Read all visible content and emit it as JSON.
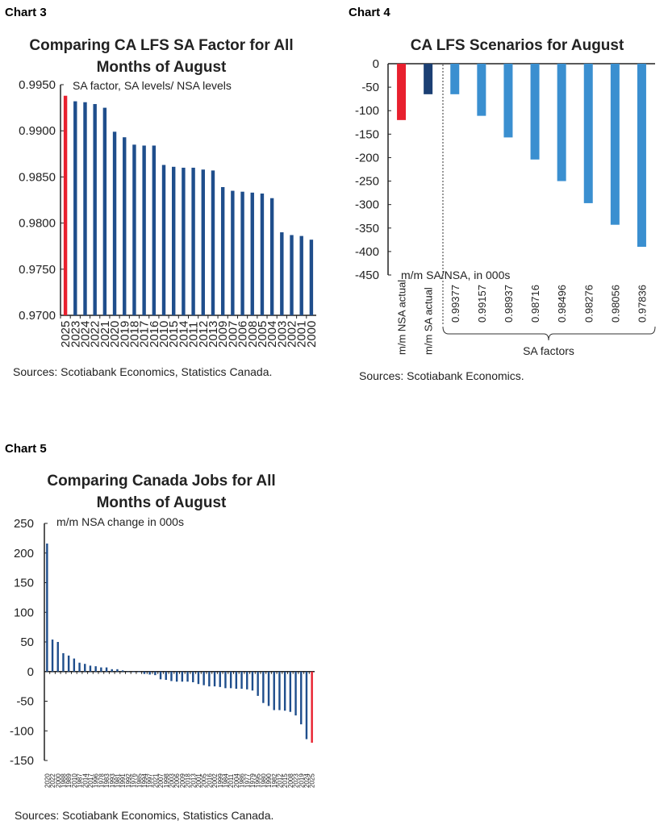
{
  "colors": {
    "navy": "#1f4e8c",
    "red": "#e8202e",
    "lightblue": "#3a8fd0",
    "darknavy": "#1b3f73"
  },
  "chart_data": [
    {
      "id": "chart3",
      "label": "Chart 3",
      "type": "bar",
      "title": [
        "Comparing CA LFS SA Factor for All",
        "Months of August"
      ],
      "ylabel": "SA factor, SA levels/ NSA levels",
      "ylim": [
        0.97,
        0.995
      ],
      "yticks": [
        "0.9700",
        "0.9750",
        "0.9800",
        "0.9850",
        "0.9900",
        "0.9950"
      ],
      "source": "Sources: Scotiabank Economics, Statistics Canada.",
      "categories": [
        "2025",
        "2023",
        "2024",
        "2022",
        "2021",
        "2020",
        "2019",
        "2018",
        "2017",
        "2016",
        "2010",
        "2015",
        "2014",
        "2011",
        "2012",
        "2013",
        "2009",
        "2007",
        "2006",
        "2008",
        "2005",
        "2004",
        "2003",
        "2002",
        "2001",
        "2000"
      ],
      "values": [
        0.9938,
        0.9932,
        0.9931,
        0.9929,
        0.9925,
        0.9899,
        0.9893,
        0.9885,
        0.9884,
        0.9884,
        0.9863,
        0.9861,
        0.986,
        0.986,
        0.9858,
        0.9857,
        0.9839,
        0.9835,
        0.9834,
        0.9833,
        0.9832,
        0.9827,
        0.979,
        0.9787,
        0.9786,
        0.9782
      ],
      "highlight": "2025"
    },
    {
      "id": "chart4",
      "label": "Chart 4",
      "type": "bar",
      "title": [
        "CA LFS Scenarios for August"
      ],
      "ylabel": "m/m SA/NSA, in 000s",
      "ylim": [
        -450,
        0
      ],
      "yticks": [
        "0",
        "-50",
        "-100",
        "-150",
        "-200",
        "-250",
        "-300",
        "-350",
        "-400",
        "-450"
      ],
      "source": "Sources: Scotiabank Economics.",
      "categories": [
        "m/m NSA actual",
        "m/m SA actual",
        "0.99377",
        "0.99157",
        "0.98937",
        "0.98716",
        "0.98496",
        "0.98276",
        "0.98056",
        "0.97836"
      ],
      "values": [
        -120,
        -65,
        -65,
        -111,
        -157,
        -204,
        -250,
        -297,
        -343,
        -390
      ],
      "group_label": "SA factors"
    },
    {
      "id": "chart5",
      "label": "Chart 5",
      "type": "bar",
      "title": [
        "Comparing Canada Jobs for All",
        "Months of August"
      ],
      "ylabel": "m/m NSA change in 000s",
      "ylim": [
        -150,
        250
      ],
      "yticks": [
        "250",
        "200",
        "150",
        "100",
        "50",
        "0",
        "-50",
        "-100",
        "-150"
      ],
      "source": "Sources: Scotiabank Economics, Statistics Canada.",
      "categories": [
        "2020",
        "2022",
        "2000",
        "1988",
        "1989",
        "2010",
        "1987",
        "2014",
        "2017",
        "1996",
        "1978",
        "1983",
        "1993",
        "1981",
        "1991",
        "1992",
        "1976",
        "1985",
        "1994",
        "1997",
        "2021",
        "2007",
        "1998",
        "2003",
        "2006",
        "2009",
        "2018",
        "2013",
        "2001",
        "2005",
        "2016",
        "2002",
        "1999",
        "1984",
        "2011",
        "2004",
        "1986",
        "1977",
        "1979",
        "1995",
        "1980",
        "1990",
        "1982",
        "2012",
        "2015",
        "2008",
        "2023",
        "2019",
        "2024",
        "2025"
      ],
      "values": [
        216,
        54,
        50,
        31,
        27,
        22,
        15,
        13,
        10,
        9,
        7,
        7,
        4,
        4,
        2,
        0,
        -1,
        -1,
        -4,
        -5,
        -6,
        -13,
        -14,
        -16,
        -17,
        -17,
        -17,
        -18,
        -21,
        -23,
        -25,
        -25,
        -26,
        -28,
        -28,
        -29,
        -29,
        -30,
        -32,
        -41,
        -53,
        -58,
        -65,
        -65,
        -66,
        -68,
        -74,
        -89,
        -114,
        -120
      ],
      "highlight": "2025"
    }
  ]
}
